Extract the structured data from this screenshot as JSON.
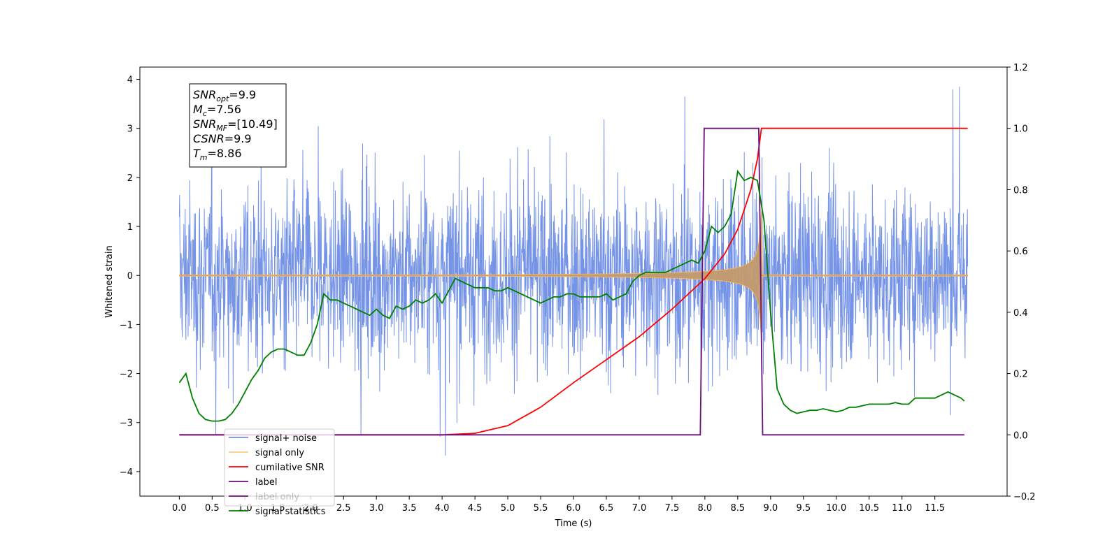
{
  "chart_data": {
    "type": "line",
    "xlabel": "Time (s)",
    "ylabel_left": "Whitened strain",
    "ylabel_right": "",
    "xlim": [
      -0.6,
      12.6
    ],
    "ylim_left": [
      -4.5,
      4.25
    ],
    "ylim_right": [
      -0.2,
      1.2
    ],
    "grid": false,
    "legend_placement": "lower-left",
    "x_ticks": [
      "0.0",
      "0.5",
      "1.0",
      "1.5",
      "2.0",
      "2.5",
      "3.0",
      "3.5",
      "4.0",
      "4.5",
      "5.0",
      "5.5",
      "6.0",
      "6.5",
      "7.0",
      "7.5",
      "8.0",
      "8.5",
      "9.0",
      "9.5",
      "10.0",
      "10.5",
      "11.0",
      "11.5"
    ],
    "y_ticks_left": [
      "4",
      "3",
      "2",
      "1",
      "0",
      "−1",
      "−2",
      "−3",
      "−4"
    ],
    "y_ticks_right": [
      "1.2",
      "1.0",
      "0.8",
      "0.6",
      "0.4",
      "0.2",
      "0.0",
      "−0.2"
    ],
    "annotation": [
      {
        "base": "SNR",
        "sub": "opt",
        "value": "=9.9"
      },
      {
        "base": "M",
        "sub": "c",
        "value": "=7.56"
      },
      {
        "base": "SNR",
        "sub": "MF",
        "value": "=[10.49]"
      },
      {
        "base": "CSNR",
        "sub": "",
        "value": "=9.9"
      },
      {
        "base": "T",
        "sub": "m",
        "value": "=8.86"
      }
    ],
    "series": [
      {
        "name": "signal+ noise",
        "axis": "left",
        "color": "#6f8ee6",
        "style": "noise",
        "x_range": [
          0.0,
          12.0
        ],
        "amplitude_range": [
          -4.1,
          3.85
        ]
      },
      {
        "name": "signal only",
        "axis": "left",
        "color": "#f5b65e",
        "style": "chirp",
        "x_range": [
          0.0,
          12.0
        ],
        "peak_time": 8.86,
        "peak_amplitude": 1.3
      },
      {
        "name": "cumilative SNR",
        "axis": "right",
        "color": "#ff0000",
        "x": [
          0.0,
          4.0,
          4.5,
          5.0,
          5.5,
          6.0,
          6.5,
          7.0,
          7.5,
          8.0,
          8.3,
          8.5,
          8.7,
          8.8,
          8.86,
          12.0
        ],
        "values": [
          0.0,
          0.0,
          0.005,
          0.03,
          0.09,
          0.17,
          0.245,
          0.32,
          0.41,
          0.51,
          0.59,
          0.67,
          0.8,
          0.9,
          1.0,
          1.0
        ]
      },
      {
        "name": "label",
        "axis": "right",
        "color": "#6b0f7a",
        "x": [
          0.0,
          7.93,
          7.99,
          8.82,
          8.88,
          11.95
        ],
        "values": [
          0.0,
          0.0,
          1.0,
          1.0,
          0.0,
          0.0
        ]
      },
      {
        "name": "label only",
        "axis": "right",
        "color": "#6b0f7a",
        "hidden": true,
        "x": [],
        "values": []
      },
      {
        "name": "signal statistics",
        "axis": "right",
        "color": "#008000",
        "x": [
          0.0,
          0.1,
          0.2,
          0.3,
          0.4,
          0.5,
          0.6,
          0.7,
          0.8,
          0.9,
          1.0,
          1.1,
          1.2,
          1.3,
          1.4,
          1.5,
          1.6,
          1.7,
          1.8,
          1.9,
          2.0,
          2.1,
          2.2,
          2.3,
          2.4,
          2.5,
          2.6,
          2.7,
          2.8,
          2.9,
          3.0,
          3.1,
          3.2,
          3.3,
          3.4,
          3.5,
          3.6,
          3.7,
          3.8,
          3.9,
          4.0,
          4.1,
          4.2,
          4.3,
          4.4,
          4.5,
          4.6,
          4.7,
          4.8,
          4.9,
          5.0,
          5.1,
          5.2,
          5.3,
          5.4,
          5.5,
          5.6,
          5.7,
          5.8,
          5.9,
          6.0,
          6.1,
          6.2,
          6.3,
          6.4,
          6.5,
          6.6,
          6.7,
          6.8,
          6.9,
          7.0,
          7.1,
          7.2,
          7.3,
          7.4,
          7.5,
          7.6,
          7.7,
          7.8,
          7.9,
          8.0,
          8.1,
          8.2,
          8.3,
          8.4,
          8.5,
          8.6,
          8.7,
          8.8,
          8.9,
          9.0,
          9.1,
          9.2,
          9.3,
          9.4,
          9.5,
          9.6,
          9.7,
          9.8,
          9.9,
          10.0,
          10.1,
          10.2,
          10.3,
          10.4,
          10.5,
          10.6,
          10.7,
          10.8,
          10.9,
          11.0,
          11.1,
          11.2,
          11.3,
          11.4,
          11.5,
          11.6,
          11.7,
          11.8,
          11.9,
          11.95
        ],
        "values": [
          0.17,
          0.2,
          0.12,
          0.07,
          0.05,
          0.045,
          0.045,
          0.05,
          0.07,
          0.1,
          0.14,
          0.18,
          0.21,
          0.25,
          0.27,
          0.28,
          0.28,
          0.27,
          0.26,
          0.26,
          0.3,
          0.36,
          0.46,
          0.44,
          0.44,
          0.43,
          0.42,
          0.41,
          0.4,
          0.39,
          0.41,
          0.39,
          0.38,
          0.42,
          0.41,
          0.42,
          0.44,
          0.43,
          0.44,
          0.46,
          0.43,
          0.47,
          0.51,
          0.5,
          0.49,
          0.48,
          0.48,
          0.48,
          0.47,
          0.47,
          0.48,
          0.47,
          0.46,
          0.45,
          0.44,
          0.43,
          0.44,
          0.45,
          0.45,
          0.46,
          0.46,
          0.45,
          0.45,
          0.45,
          0.45,
          0.46,
          0.44,
          0.45,
          0.46,
          0.5,
          0.52,
          0.53,
          0.53,
          0.53,
          0.53,
          0.54,
          0.55,
          0.56,
          0.57,
          0.56,
          0.6,
          0.68,
          0.66,
          0.68,
          0.72,
          0.86,
          0.83,
          0.84,
          0.83,
          0.7,
          0.4,
          0.15,
          0.1,
          0.08,
          0.07,
          0.075,
          0.08,
          0.08,
          0.085,
          0.08,
          0.075,
          0.08,
          0.09,
          0.09,
          0.095,
          0.1,
          0.1,
          0.1,
          0.1,
          0.105,
          0.1,
          0.1,
          0.12,
          0.12,
          0.12,
          0.12,
          0.13,
          0.14,
          0.13,
          0.12,
          0.11
        ]
      }
    ]
  }
}
